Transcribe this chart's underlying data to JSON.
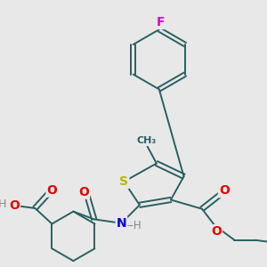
{
  "background_color": "#e8e8e8",
  "atom_colors": {
    "S": "#b8b800",
    "N": "#0000ee",
    "O": "#ee0000",
    "F": "#dd00dd",
    "C": "#2a6060",
    "H": "#888888"
  },
  "bond_color": "#2a6060",
  "bond_lw": 1.4,
  "figsize": [
    3.0,
    3.0
  ],
  "dpi": 100
}
